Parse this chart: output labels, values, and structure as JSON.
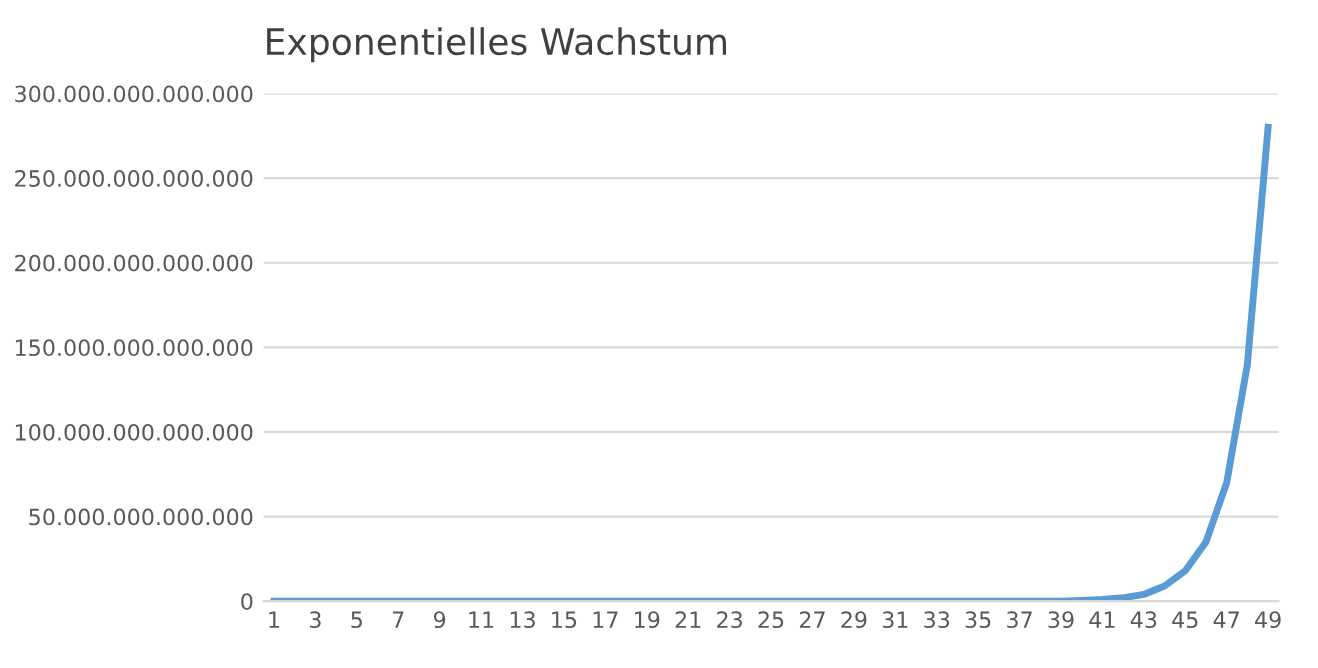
{
  "chart_data": {
    "type": "line",
    "title": "Exponentielles Wachstum",
    "categories": [
      "1",
      null,
      "3",
      null,
      "5",
      null,
      "7",
      null,
      "9",
      null,
      "11",
      null,
      "13",
      null,
      "15",
      null,
      "17",
      null,
      "19",
      null,
      "21",
      null,
      "23",
      null,
      "25",
      null,
      "27",
      null,
      "29",
      null,
      "31",
      null,
      "33",
      null,
      "35",
      null,
      "37",
      null,
      "39",
      null,
      "41",
      null,
      "43",
      null,
      "45",
      null,
      "47",
      null,
      "49"
    ],
    "series": [
      {
        "color": "#5b9bd5",
        "values": [
          0,
          0,
          0,
          0,
          0,
          0,
          0,
          0,
          0,
          0,
          0,
          0,
          0,
          0,
          0,
          0,
          0,
          0,
          0,
          0,
          0,
          0,
          0,
          0,
          0,
          0,
          0,
          0,
          0,
          0,
          0,
          0,
          0,
          0,
          0,
          0,
          0,
          0,
          0,
          500000000000,
          1000000000000,
          2000000000000,
          4000000000000,
          9000000000000,
          18000000000000,
          35000000000000,
          70000000000000,
          140000000000000,
          280000000000000
        ]
      }
    ],
    "ylim": [
      0,
      300000000000000
    ],
    "yticks": [
      {
        "value": 0,
        "label": "0"
      },
      {
        "value": 50000000000000,
        "label": "50.000.000.000.000"
      },
      {
        "value": 100000000000000,
        "label": "100.000.000.000.000"
      },
      {
        "value": 150000000000000,
        "label": "150.000.000.000.000"
      },
      {
        "value": 200000000000000,
        "label": "200.000.000.000.000"
      },
      {
        "value": 250000000000000,
        "label": "250.000.000.000.000"
      },
      {
        "value": 300000000000000,
        "label": "300.000.000.000.000"
      }
    ],
    "grid": "y",
    "legend": false,
    "marker": "none",
    "line_style": "solid"
  }
}
